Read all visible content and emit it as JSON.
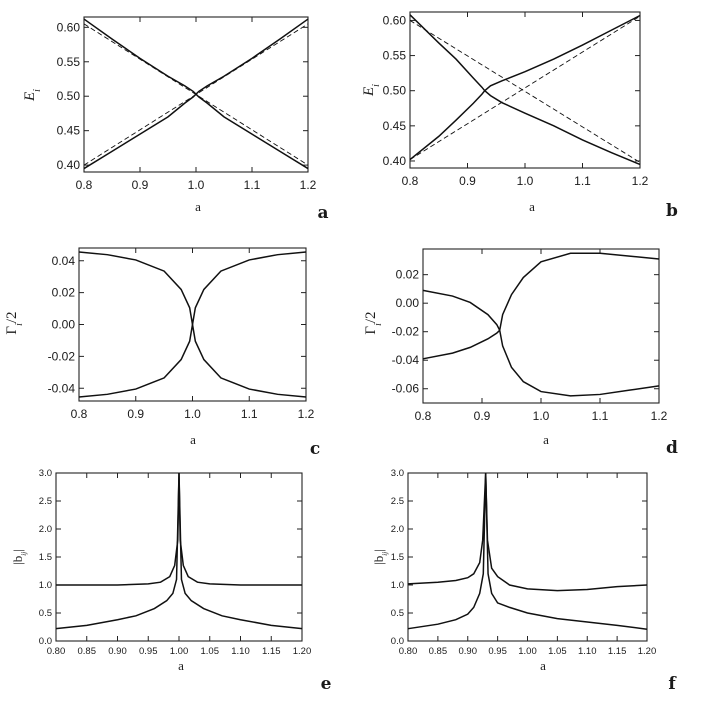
{
  "chart_data": [
    {
      "id": "a",
      "type": "line",
      "panel_label": "a",
      "xlabel": "a",
      "ylabel": "E_i",
      "xlim": [
        0.8,
        1.2
      ],
      "ylim": [
        0.39,
        0.615
      ],
      "xticks": [
        0.8,
        0.9,
        1.0,
        1.1,
        1.2
      ],
      "xtick_labels": [
        "0.8",
        "0.9",
        "1.0",
        "1.1",
        "1.2"
      ],
      "yticks": [
        0.4,
        0.45,
        0.5,
        0.55,
        0.6
      ],
      "ytick_labels": [
        "0.40",
        "0.45",
        "0.50",
        "0.55",
        "0.60"
      ],
      "grid": false,
      "series": [
        {
          "style": "solid",
          "x": [
            0.8,
            0.85,
            0.9,
            0.95,
            0.98,
            0.995,
            1.0,
            1.005,
            1.02,
            1.05,
            1.1,
            1.15,
            1.2
          ],
          "y": [
            0.612,
            0.583,
            0.555,
            0.529,
            0.515,
            0.507,
            0.503,
            0.499,
            0.49,
            0.47,
            0.445,
            0.42,
            0.395
          ]
        },
        {
          "style": "solid",
          "x": [
            0.8,
            0.85,
            0.9,
            0.95,
            0.98,
            0.995,
            1.0,
            1.005,
            1.02,
            1.05,
            1.1,
            1.15,
            1.2
          ],
          "y": [
            0.395,
            0.42,
            0.445,
            0.47,
            0.49,
            0.499,
            0.503,
            0.507,
            0.515,
            0.529,
            0.555,
            0.583,
            0.612
          ]
        },
        {
          "style": "dashed",
          "x": [
            0.8,
            1.2
          ],
          "y": [
            0.4,
            0.605
          ]
        },
        {
          "style": "dashed",
          "x": [
            0.8,
            1.2
          ],
          "y": [
            0.605,
            0.4
          ]
        }
      ]
    },
    {
      "id": "b",
      "type": "line",
      "panel_label": "b",
      "xlabel": "a",
      "ylabel": "E_i",
      "xlim": [
        0.8,
        1.2
      ],
      "ylim": [
        0.39,
        0.612
      ],
      "xticks": [
        0.8,
        0.9,
        1.0,
        1.1,
        1.2
      ],
      "xtick_labels": [
        "0.8",
        "0.9",
        "1.0",
        "1.1",
        "1.2"
      ],
      "yticks": [
        0.4,
        0.45,
        0.5,
        0.55,
        0.6
      ],
      "ytick_labels": [
        "0.40",
        "0.45",
        "0.50",
        "0.55",
        "0.60"
      ],
      "grid": false,
      "series": [
        {
          "style": "solid",
          "x": [
            0.8,
            0.85,
            0.88,
            0.91,
            0.925,
            0.93,
            0.94,
            0.96,
            1.0,
            1.05,
            1.1,
            1.15,
            1.2
          ],
          "y": [
            0.608,
            0.568,
            0.545,
            0.518,
            0.505,
            0.5,
            0.507,
            0.514,
            0.527,
            0.545,
            0.565,
            0.586,
            0.607
          ]
        },
        {
          "style": "solid",
          "x": [
            0.8,
            0.85,
            0.88,
            0.91,
            0.925,
            0.93,
            0.94,
            0.96,
            1.0,
            1.05,
            1.1,
            1.15,
            1.2
          ],
          "y": [
            0.402,
            0.435,
            0.458,
            0.482,
            0.495,
            0.5,
            0.493,
            0.483,
            0.468,
            0.45,
            0.43,
            0.412,
            0.395
          ]
        },
        {
          "style": "dashed",
          "x": [
            0.8,
            1.2
          ],
          "y": [
            0.402,
            0.606
          ]
        },
        {
          "style": "dashed",
          "x": [
            0.8,
            1.2
          ],
          "y": [
            0.6,
            0.398
          ]
        }
      ]
    },
    {
      "id": "c",
      "type": "line",
      "panel_label": "c",
      "xlabel": "a",
      "ylabel": "Γ_i/2",
      "xlim": [
        0.8,
        1.2
      ],
      "ylim": [
        -0.048,
        0.048
      ],
      "xticks": [
        0.8,
        0.9,
        1.0,
        1.1,
        1.2
      ],
      "xtick_labels": [
        "0.8",
        "0.9",
        "1.0",
        "1.1",
        "1.2"
      ],
      "yticks": [
        -0.04,
        -0.02,
        0.0,
        0.02,
        0.04
      ],
      "ytick_labels": [
        "-0.04",
        "-0.02",
        "0.00",
        "0.02",
        "0.04"
      ],
      "grid": false,
      "series": [
        {
          "style": "solid",
          "x": [
            0.8,
            0.85,
            0.9,
            0.95,
            0.98,
            0.995,
            1.0,
            1.005,
            1.02,
            1.05,
            1.1,
            1.15,
            1.2
          ],
          "y": [
            0.0455,
            0.0438,
            0.0405,
            0.0335,
            0.022,
            0.0105,
            0.0,
            -0.0105,
            -0.022,
            -0.0335,
            -0.0405,
            -0.0438,
            -0.0455
          ]
        },
        {
          "style": "solid",
          "x": [
            0.8,
            0.85,
            0.9,
            0.95,
            0.98,
            0.995,
            1.0,
            1.005,
            1.02,
            1.05,
            1.1,
            1.15,
            1.2
          ],
          "y": [
            -0.0455,
            -0.0438,
            -0.0405,
            -0.0335,
            -0.022,
            -0.0105,
            0.0,
            0.0105,
            0.022,
            0.0335,
            0.0405,
            0.0438,
            0.0455
          ]
        }
      ]
    },
    {
      "id": "d",
      "type": "line",
      "panel_label": "d",
      "xlabel": "a",
      "ylabel": "Γ_i/2",
      "xlim": [
        0.8,
        1.2
      ],
      "ylim": [
        -0.07,
        0.038
      ],
      "xticks": [
        0.8,
        0.9,
        1.0,
        1.1,
        1.2
      ],
      "xtick_labels": [
        "0.8",
        "0.9",
        "1.0",
        "1.1",
        "1.2"
      ],
      "yticks": [
        -0.06,
        -0.04,
        -0.02,
        0.0,
        0.02
      ],
      "ytick_labels": [
        "-0.06",
        "-0.04",
        "-0.02",
        "0.00",
        "0.02"
      ],
      "grid": false,
      "series": [
        {
          "style": "solid",
          "x": [
            0.8,
            0.85,
            0.88,
            0.91,
            0.925,
            0.93,
            0.935,
            0.95,
            0.97,
            1.0,
            1.05,
            1.1,
            1.15,
            1.2
          ],
          "y": [
            0.009,
            0.005,
            0.0005,
            -0.008,
            -0.015,
            -0.019,
            -0.008,
            0.006,
            0.018,
            0.029,
            0.035,
            0.035,
            0.033,
            0.031
          ]
        },
        {
          "style": "solid",
          "x": [
            0.8,
            0.85,
            0.88,
            0.91,
            0.925,
            0.93,
            0.935,
            0.95,
            0.97,
            1.0,
            1.05,
            1.1,
            1.15,
            1.2
          ],
          "y": [
            -0.039,
            -0.035,
            -0.031,
            -0.025,
            -0.021,
            -0.019,
            -0.03,
            -0.045,
            -0.055,
            -0.062,
            -0.065,
            -0.064,
            -0.061,
            -0.058
          ]
        }
      ]
    },
    {
      "id": "e",
      "type": "line",
      "panel_label": "e",
      "xlabel": "a",
      "ylabel": "|b_ij|",
      "xlim": [
        0.8,
        1.2
      ],
      "ylim": [
        0.0,
        3.0
      ],
      "xticks": [
        0.8,
        0.85,
        0.9,
        0.95,
        1.0,
        1.05,
        1.1,
        1.15,
        1.2
      ],
      "xtick_labels": [
        "0.80",
        "0.85",
        "0.90",
        "0.95",
        "1.00",
        "1.05",
        "1.10",
        "1.15",
        "1.20"
      ],
      "yticks": [
        0.0,
        0.5,
        1.0,
        1.5,
        2.0,
        2.5,
        3.0
      ],
      "ytick_labels": [
        "0.0",
        "0.5",
        "1.0",
        "1.5",
        "2.0",
        "2.5",
        "3.0"
      ],
      "grid": false,
      "series": [
        {
          "style": "solid",
          "x": [
            0.8,
            0.85,
            0.9,
            0.95,
            0.97,
            0.985,
            0.993,
            0.998,
            1.0,
            1.002,
            1.007,
            1.015,
            1.03,
            1.05,
            1.1,
            1.15,
            1.2
          ],
          "y": [
            1.0,
            1.0,
            1.0,
            1.02,
            1.05,
            1.15,
            1.35,
            1.8,
            3.0,
            1.8,
            1.35,
            1.15,
            1.05,
            1.02,
            1.0,
            1.0,
            1.0
          ]
        },
        {
          "style": "solid",
          "x": [
            0.8,
            0.85,
            0.9,
            0.93,
            0.96,
            0.98,
            0.99,
            0.996,
            1.0,
            1.004,
            1.01,
            1.02,
            1.04,
            1.07,
            1.1,
            1.15,
            1.2
          ],
          "y": [
            0.22,
            0.28,
            0.38,
            0.45,
            0.58,
            0.72,
            0.85,
            1.1,
            3.0,
            1.1,
            0.85,
            0.72,
            0.58,
            0.45,
            0.38,
            0.28,
            0.22
          ]
        }
      ]
    },
    {
      "id": "f",
      "type": "line",
      "panel_label": "f",
      "xlabel": "a",
      "ylabel": "|b_ij|",
      "xlim": [
        0.8,
        1.2
      ],
      "ylim": [
        0.0,
        3.0
      ],
      "xticks": [
        0.8,
        0.85,
        0.9,
        0.95,
        1.0,
        1.05,
        1.1,
        1.15,
        1.2
      ],
      "xtick_labels": [
        "0.80",
        "0.85",
        "0.90",
        "0.95",
        "1.00",
        "1.05",
        "1.10",
        "1.15",
        "1.20"
      ],
      "yticks": [
        0.0,
        0.5,
        1.0,
        1.5,
        2.0,
        2.5,
        3.0
      ],
      "ytick_labels": [
        "0.0",
        "0.5",
        "1.0",
        "1.5",
        "2.0",
        "2.5",
        "3.0"
      ],
      "grid": false,
      "series": [
        {
          "style": "solid",
          "x": [
            0.8,
            0.85,
            0.88,
            0.9,
            0.91,
            0.92,
            0.925,
            0.93,
            0.933,
            0.94,
            0.95,
            0.97,
            1.0,
            1.05,
            1.1,
            1.15,
            1.2
          ],
          "y": [
            1.02,
            1.05,
            1.08,
            1.13,
            1.2,
            1.4,
            1.8,
            3.0,
            1.8,
            1.3,
            1.15,
            1.0,
            0.93,
            0.9,
            0.92,
            0.97,
            1.0
          ]
        },
        {
          "style": "solid",
          "x": [
            0.8,
            0.85,
            0.88,
            0.9,
            0.91,
            0.92,
            0.926,
            0.93,
            0.934,
            0.94,
            0.95,
            0.97,
            1.0,
            1.05,
            1.1,
            1.15,
            1.2
          ],
          "y": [
            0.22,
            0.3,
            0.38,
            0.48,
            0.6,
            0.85,
            1.2,
            3.0,
            1.2,
            0.85,
            0.68,
            0.6,
            0.5,
            0.4,
            0.34,
            0.28,
            0.21
          ]
        }
      ]
    }
  ]
}
